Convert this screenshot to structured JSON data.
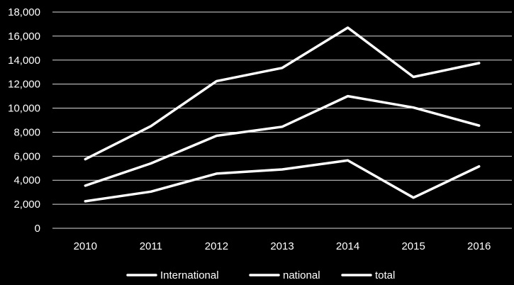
{
  "chart_data": {
    "type": "line",
    "title": "",
    "xlabel": "",
    "ylabel": "",
    "categories": [
      "2010",
      "2011",
      "2012",
      "2013",
      "2014",
      "2015",
      "2016"
    ],
    "ylim": [
      0,
      18000
    ],
    "yticks": [
      0,
      2000,
      4000,
      6000,
      8000,
      10000,
      12000,
      14000,
      16000,
      18000
    ],
    "ytick_labels": [
      "0",
      "2,000",
      "4,000",
      "6,000",
      "8,000",
      "10,000",
      "12,000",
      "14,000",
      "16,000",
      "18,000"
    ],
    "grid": "horizontal",
    "legend_position": "bottom",
    "background_color": "#000000",
    "line_color": "#ffffff",
    "series": [
      {
        "name": "International",
        "values": [
          2250,
          3050,
          4550,
          4900,
          5650,
          2550,
          5150
        ]
      },
      {
        "name": "national",
        "values": [
          3550,
          5400,
          7700,
          8450,
          11000,
          10050,
          8550
        ]
      },
      {
        "name": "total",
        "values": [
          5750,
          8500,
          12250,
          13350,
          16700,
          12600,
          13750
        ]
      }
    ]
  }
}
